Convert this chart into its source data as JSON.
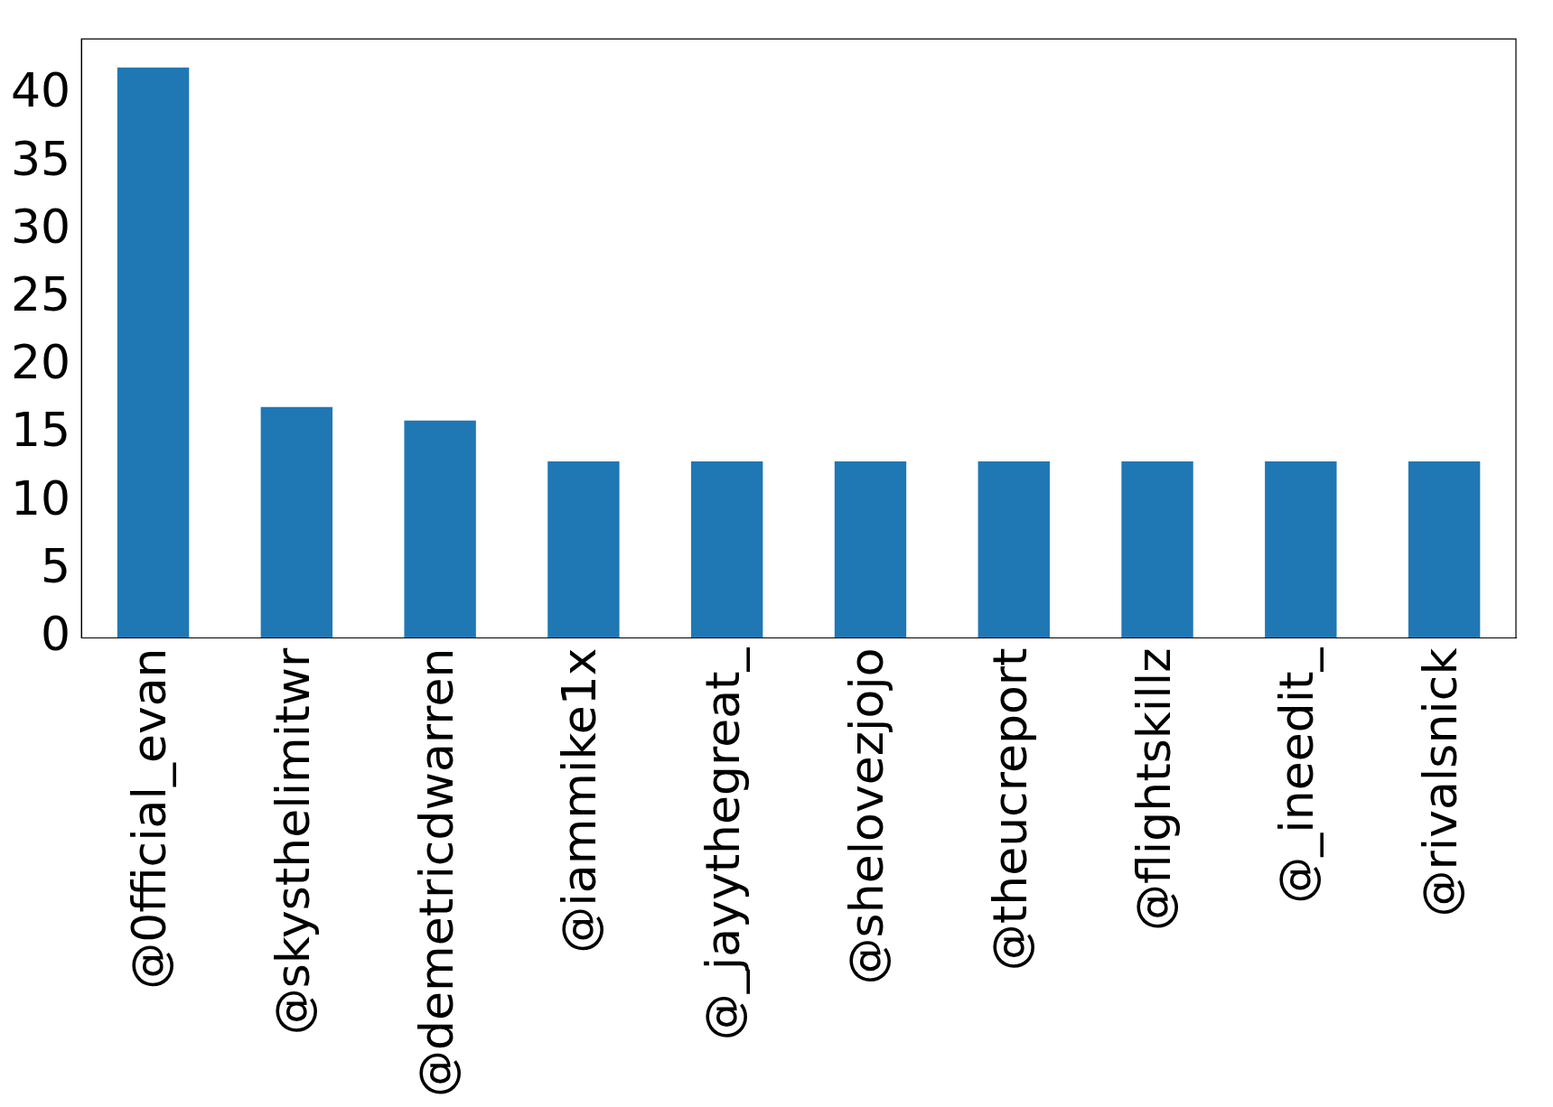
{
  "chart_data": {
    "type": "bar",
    "categories": [
      "@0fficial_evan",
      "@skysthelimitwr",
      "@demetricdwarren",
      "@iammike1x",
      "@_jayythegreat_",
      "@shelovezjojo",
      "@theucreport",
      "@flightskillz",
      "@_ineedit_",
      "@rivalsnick"
    ],
    "values": [
      42,
      17,
      16,
      13,
      13,
      13,
      13,
      13,
      13,
      13
    ],
    "color": "#1f77b4",
    "ylim": [
      0,
      44.1
    ],
    "yticks": [
      0,
      5,
      10,
      15,
      20,
      25,
      30,
      35,
      40
    ],
    "grid": false,
    "legend": false
  }
}
